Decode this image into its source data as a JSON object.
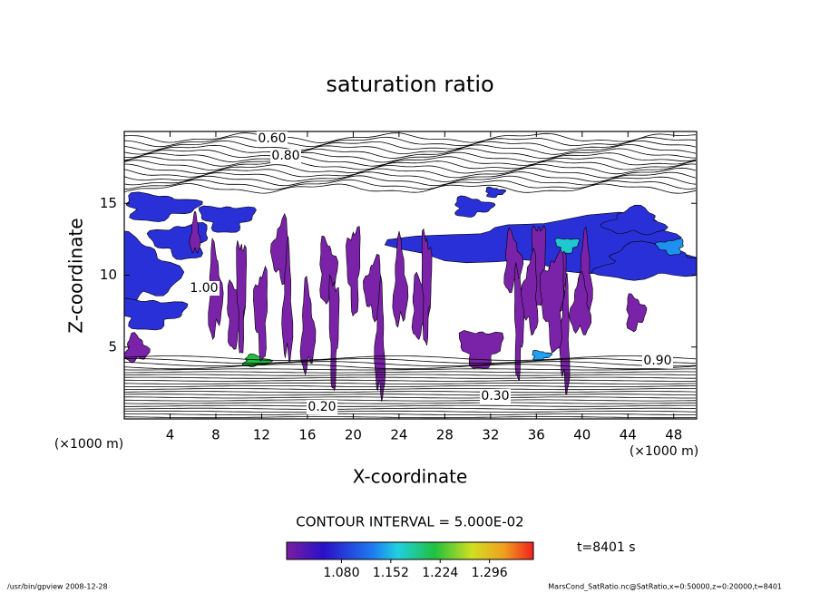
{
  "chart_data": {
    "type": "contour",
    "title": "saturation ratio",
    "x_label": "X-coordinate",
    "y_label": "Z-coordinate",
    "x_unit": "(×1000 m)",
    "y_unit": "(×1000 m)",
    "xlim": [
      0,
      50
    ],
    "xticks": [
      4,
      8,
      12,
      16,
      20,
      24,
      28,
      32,
      36,
      40,
      44,
      48
    ],
    "ylim": [
      0,
      20
    ],
    "yticks": [
      5,
      10,
      15
    ],
    "contour_labels": [
      "0.20",
      "0.30",
      "0.60",
      "0.80",
      "0.90",
      "1.00"
    ],
    "contour_interval": "CONTOUR INTERVAL = 5.000E-02",
    "time_label": "t=8401 s",
    "colorbar_lim": [
      1.0,
      1.36
    ],
    "colorbar_ticks": [
      {
        "value": 1.08,
        "label": "1.080"
      },
      1.152,
      1.224,
      1.296
    ],
    "footer_left": "/usr/bin/gpview  2008-12-28",
    "footer_right": "MarsCond_SatRatio.nc@SatRatio,x=0:50000,z=0:20000,t=8401"
  }
}
